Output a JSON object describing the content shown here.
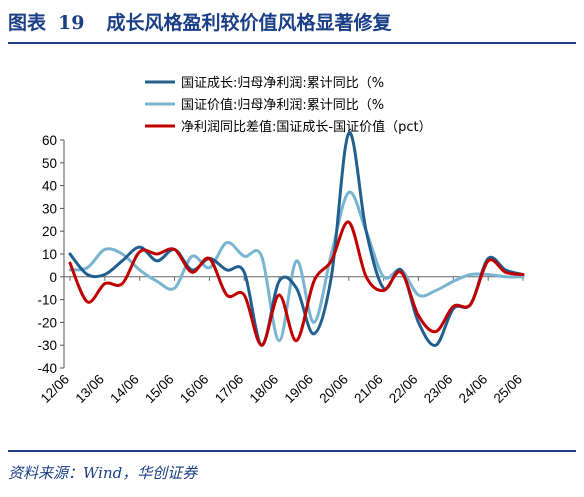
{
  "header": {
    "label": "图表",
    "number": "19",
    "title": "成长风格盈利较价值风格显著修复"
  },
  "source": "资料来源：Wind，华创证券",
  "chart_data": {
    "type": "line",
    "x": [
      "12/06",
      "12/12",
      "13/06",
      "13/12",
      "14/06",
      "14/12",
      "15/06",
      "15/12",
      "16/06",
      "16/12",
      "17/06",
      "17/12",
      "18/06",
      "18/12",
      "19/06",
      "19/12",
      "20/06",
      "20/12",
      "21/06",
      "21/12",
      "22/06",
      "22/12",
      "23/06",
      "23/12",
      "24/06",
      "24/12",
      "25/06"
    ],
    "x_tick_labels": [
      "12/06",
      "13/06",
      "14/06",
      "15/06",
      "16/06",
      "17/06",
      "18/06",
      "19/06",
      "20/06",
      "21/06",
      "22/06",
      "23/06",
      "24/06",
      "25/06"
    ],
    "ylim": [
      -40,
      60
    ],
    "yticks": [
      -40,
      -30,
      -20,
      -10,
      0,
      10,
      20,
      30,
      40,
      50,
      60
    ],
    "legend_position": "top-left",
    "series": [
      {
        "name": "国证成长:归母净利润:累计同比（%",
        "color": "#215f8f",
        "values": [
          10,
          1,
          1,
          7,
          13,
          7,
          12,
          3,
          8,
          3,
          2,
          -30,
          -2,
          -5,
          -25,
          0,
          63,
          20,
          -5,
          3,
          -20,
          -30,
          -14,
          -12,
          8,
          3,
          1
        ]
      },
      {
        "name": "国证价值:归母净利润:累计同比（%",
        "color": "#79b4d0",
        "values": [
          3,
          4,
          12,
          10,
          3,
          -2,
          -5,
          9,
          4,
          15,
          9,
          9,
          -28,
          7,
          -20,
          10,
          37,
          20,
          0,
          3,
          -8,
          -6,
          -2,
          1,
          1,
          0,
          0
        ]
      },
      {
        "name": "净利润同比差值:国证成长-国证价值（pct）",
        "color": "#c00000",
        "values": [
          6,
          -11,
          -3,
          -3,
          11,
          10,
          12,
          2,
          8,
          -8,
          -8,
          -30,
          -8,
          -28,
          -2,
          7,
          24,
          0,
          -6,
          2,
          -17,
          -24,
          -13,
          -12,
          7,
          2,
          1
        ]
      }
    ]
  }
}
